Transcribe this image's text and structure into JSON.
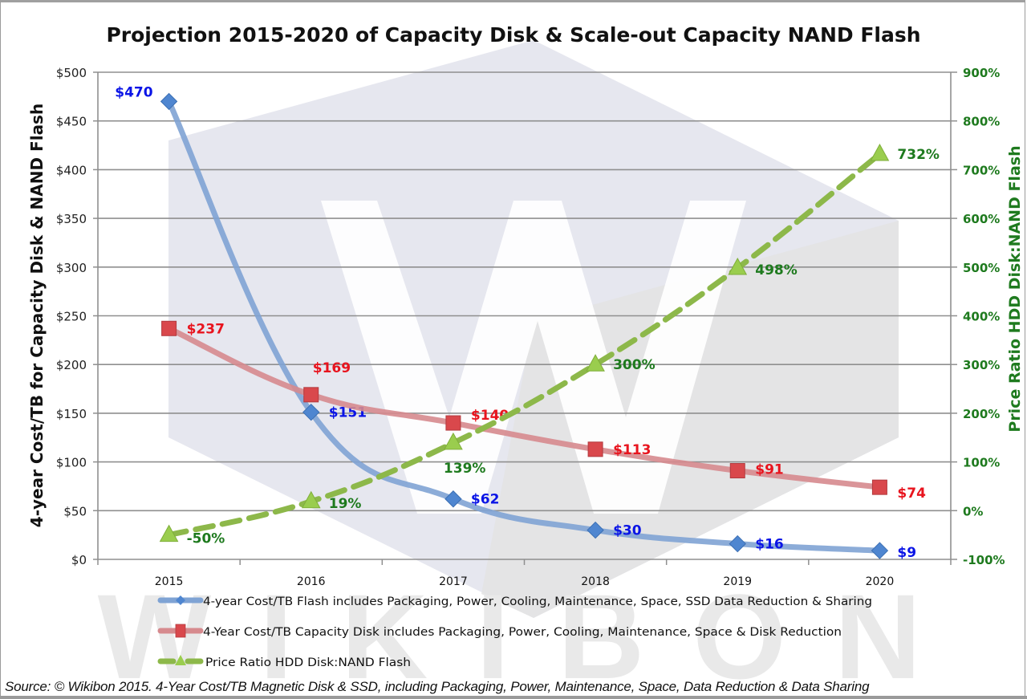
{
  "chart_data": {
    "type": "line",
    "title": "Projection 2015-2020 of Capacity Disk & Scale-out Capacity NAND Flash",
    "xlabel": "",
    "ylabel": "4-year Cost/TB for Capacity Disk & NAND Flash",
    "y2label": "Price Ratio HDD Disk:NAND Flash",
    "categories": [
      "2015",
      "2016",
      "2017",
      "2018",
      "2019",
      "2020"
    ],
    "ylim": [
      0,
      500
    ],
    "y2lim": [
      -100,
      900
    ],
    "yticks": [
      0,
      50,
      100,
      150,
      200,
      250,
      300,
      350,
      400,
      450,
      500
    ],
    "ytick_labels": [
      "$0",
      "$50",
      "$100",
      "$150",
      "$200",
      "$250",
      "$300",
      "$350",
      "$400",
      "$450",
      "$500"
    ],
    "y2ticks": [
      -100,
      0,
      100,
      200,
      300,
      400,
      500,
      600,
      700,
      800,
      900
    ],
    "y2tick_labels": [
      "-100%",
      "0%",
      "100%",
      "200%",
      "300%",
      "400%",
      "500%",
      "600%",
      "700%",
      "800%",
      "900%"
    ],
    "grid": true,
    "legend_position": "bottom",
    "series": [
      {
        "name": "4-year Cost/TB Flash includes Packaging, Power, Cooling, Maintenance, Space, SSD Data Reduction & Sharing",
        "axis": "left",
        "marker": "diamond",
        "line_style": "solid-smooth",
        "line_color": "#7fa3d4",
        "marker_color": "#4f86d0",
        "label_color": "#0a14e6",
        "values": [
          470,
          151,
          62,
          30,
          16,
          9
        ],
        "labels": [
          "$470",
          "$151",
          "$62",
          "$30",
          "$16",
          "$9"
        ]
      },
      {
        "name": "4-Year Cost/TB Capacity Disk includes Packaging, Power, Cooling, Maintenance, Space & Disk Reduction",
        "axis": "left",
        "marker": "square",
        "line_style": "solid-smooth",
        "line_color": "#d68a8e",
        "marker_color": "#d9484c",
        "label_color": "#e8141e",
        "values": [
          237,
          169,
          140,
          113,
          91,
          74
        ],
        "labels": [
          "$237",
          "$169",
          "$140",
          "$113",
          "$91",
          "$74"
        ]
      },
      {
        "name": "Price Ratio HDD Disk:NAND Flash",
        "axis": "right",
        "marker": "triangle",
        "line_style": "dashed",
        "line_color": "#8db84a",
        "marker_color": "#9acd4e",
        "label_color": "#1e7a1e",
        "values": [
          -50,
          19,
          139,
          300,
          498,
          732
        ],
        "labels": [
          "-50%",
          "19%",
          "139%",
          "300%",
          "498%",
          "732%"
        ]
      }
    ],
    "source_note": "Source: © Wikibon 2015. 4-Year Cost/TB Magnetic Disk & SSD, including Packaging, Power, Maintenance, Space, Data Reduction & Data Sharing",
    "watermark": "WIKIBON"
  }
}
